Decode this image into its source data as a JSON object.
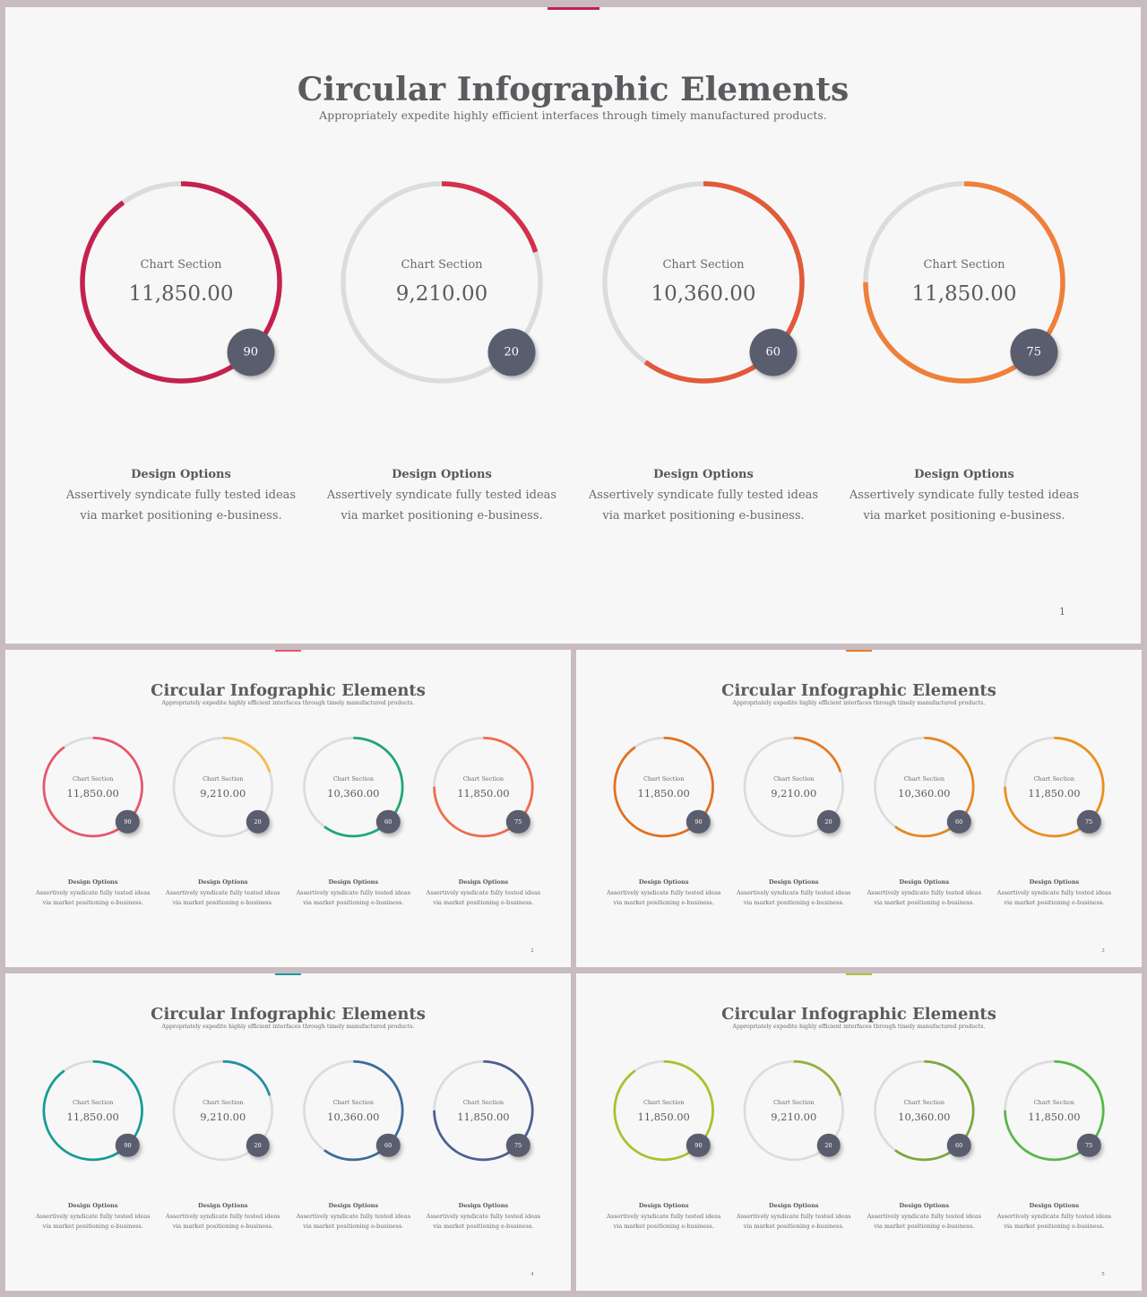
{
  "slides": [
    {
      "title": "Circular Infographic Elements",
      "subtitle": "Appropriately expedite highly efficient interfaces through timely manufactured products.",
      "page_number": "1",
      "accent_color": "#c4214f",
      "items": [
        {
          "label": "Chart Section",
          "value": "11,850.00",
          "percent": 90,
          "badge": "90",
          "color": "#c4214f",
          "caption_title": "Design Options",
          "caption_line1": "Assertively syndicate fully  tested ideas",
          "caption_line2": "via market positioning e-business."
        },
        {
          "label": "Chart Section",
          "value": "9,210.00",
          "percent": 20,
          "badge": "20",
          "color": "#d3304a",
          "caption_title": "Design Options",
          "caption_line1": "Assertively syndicate fully  tested ideas",
          "caption_line2": "via market positioning e-business."
        },
        {
          "label": "Chart Section",
          "value": "10,360.00",
          "percent": 60,
          "badge": "60",
          "color": "#e15a3a",
          "caption_title": "Design Options",
          "caption_line1": "Assertively syndicate fully  tested ideas",
          "caption_line2": "via market positioning e-business."
        },
        {
          "label": "Chart Section",
          "value": "11,850.00",
          "percent": 75,
          "badge": "75",
          "color": "#ef7f3a",
          "caption_title": "Design Options",
          "caption_line1": "Assertively syndicate fully  tested ideas",
          "caption_line2": "via market positioning e-business."
        }
      ]
    },
    {
      "title": "Circular Infographic Elements",
      "subtitle": "Appropriately expedite highly efficient interfaces through timely manufactured products.",
      "page_number": "2",
      "accent_color": "#e8566b",
      "items": [
        {
          "label": "Chart Section",
          "value": "11,850.00",
          "percent": 90,
          "badge": "90",
          "color": "#e8566b",
          "caption_title": "Design Options",
          "caption_line1": "Assertively syndicate fully  tested ideas",
          "caption_line2": "via market positioning e-business."
        },
        {
          "label": "Chart Section",
          "value": "9,210.00",
          "percent": 20,
          "badge": "20",
          "color": "#f0bd52",
          "caption_title": "Design Options",
          "caption_line1": "Assertively syndicate fully  tested ideas",
          "caption_line2": "via market positioning e-business."
        },
        {
          "label": "Chart Section",
          "value": "10,360.00",
          "percent": 60,
          "badge": "60",
          "color": "#20a774",
          "caption_title": "Design Options",
          "caption_line1": "Assertively syndicate fully  tested ideas",
          "caption_line2": "via market positioning e-business."
        },
        {
          "label": "Chart Section",
          "value": "11,850.00",
          "percent": 75,
          "badge": "75",
          "color": "#ee6c4d",
          "caption_title": "Design Options",
          "caption_line1": "Assertively syndicate fully  tested ideas",
          "caption_line2": "via market positioning e-business."
        }
      ]
    },
    {
      "title": "Circular Infographic Elements",
      "subtitle": "Appropriately expedite highly efficient interfaces through timely manufactured products.",
      "page_number": "3",
      "accent_color": "#e57a2b",
      "items": [
        {
          "label": "Chart Section",
          "value": "11,850.00",
          "percent": 90,
          "badge": "90",
          "color": "#e2711f",
          "caption_title": "Design Options",
          "caption_line1": "Assertively syndicate fully  tested ideas",
          "caption_line2": "via market positioning e-business."
        },
        {
          "label": "Chart Section",
          "value": "9,210.00",
          "percent": 20,
          "badge": "20",
          "color": "#e57a22",
          "caption_title": "Design Options",
          "caption_line1": "Assertively syndicate fully  tested ideas",
          "caption_line2": "via market positioning e-business."
        },
        {
          "label": "Chart Section",
          "value": "10,360.00",
          "percent": 60,
          "badge": "60",
          "color": "#e7861f",
          "caption_title": "Design Options",
          "caption_line1": "Assertively syndicate fully  tested ideas",
          "caption_line2": "via market positioning e-business."
        },
        {
          "label": "Chart Section",
          "value": "11,850.00",
          "percent": 75,
          "badge": "75",
          "color": "#ea8f1e",
          "caption_title": "Design Options",
          "caption_line1": "Assertively syndicate fully  tested ideas",
          "caption_line2": "via market positioning e-business."
        }
      ]
    },
    {
      "title": "Circular Infographic Elements",
      "subtitle": "Appropriately expedite highly efficient interfaces through timely manufactured products.",
      "page_number": "4",
      "accent_color": "#1b9aa6",
      "items": [
        {
          "label": "Chart Section",
          "value": "11,850.00",
          "percent": 90,
          "badge": "90",
          "color": "#179c96",
          "caption_title": "Design Options",
          "caption_line1": "Assertively syndicate fully  tested ideas",
          "caption_line2": "via market positioning e-business."
        },
        {
          "label": "Chart Section",
          "value": "9,210.00",
          "percent": 20,
          "badge": "20",
          "color": "#1f8fa8",
          "caption_title": "Design Options",
          "caption_line1": "Assertively syndicate fully  tested ideas",
          "caption_line2": "via market positioning e-business."
        },
        {
          "label": "Chart Section",
          "value": "10,360.00",
          "percent": 60,
          "badge": "60",
          "color": "#3d6b9c",
          "caption_title": "Design Options",
          "caption_line1": "Assertively syndicate fully  tested ideas",
          "caption_line2": "via market positioning e-business."
        },
        {
          "label": "Chart Section",
          "value": "11,850.00",
          "percent": 75,
          "badge": "75",
          "color": "#4d5f92",
          "caption_title": "Design Options",
          "caption_line1": "Assertively syndicate fully  tested ideas",
          "caption_line2": "via market positioning e-business."
        }
      ]
    },
    {
      "title": "Circular Infographic Elements",
      "subtitle": "Appropriately expedite highly efficient interfaces through timely manufactured products.",
      "page_number": "5",
      "accent_color": "#a8c230",
      "items": [
        {
          "label": "Chart Section",
          "value": "11,850.00",
          "percent": 90,
          "badge": "90",
          "color": "#a9c22e",
          "caption_title": "Design Options",
          "caption_line1": "Assertively syndicate fully  tested ideas",
          "caption_line2": "via market positioning e-business."
        },
        {
          "label": "Chart Section",
          "value": "9,210.00",
          "percent": 20,
          "badge": "20",
          "color": "#93b238",
          "caption_title": "Design Options",
          "caption_line1": "Assertively syndicate fully  tested ideas",
          "caption_line2": "via market positioning e-business."
        },
        {
          "label": "Chart Section",
          "value": "10,360.00",
          "percent": 60,
          "badge": "60",
          "color": "#7aa83c",
          "caption_title": "Design Options",
          "caption_line1": "Assertively syndicate fully  tested ideas",
          "caption_line2": "via market positioning e-business."
        },
        {
          "label": "Chart Section",
          "value": "11,850.00",
          "percent": 75,
          "badge": "75",
          "color": "#58b74a",
          "caption_title": "Design Options",
          "caption_line1": "Assertively syndicate fully  tested ideas",
          "caption_line2": "via market positioning e-business."
        }
      ]
    }
  ]
}
